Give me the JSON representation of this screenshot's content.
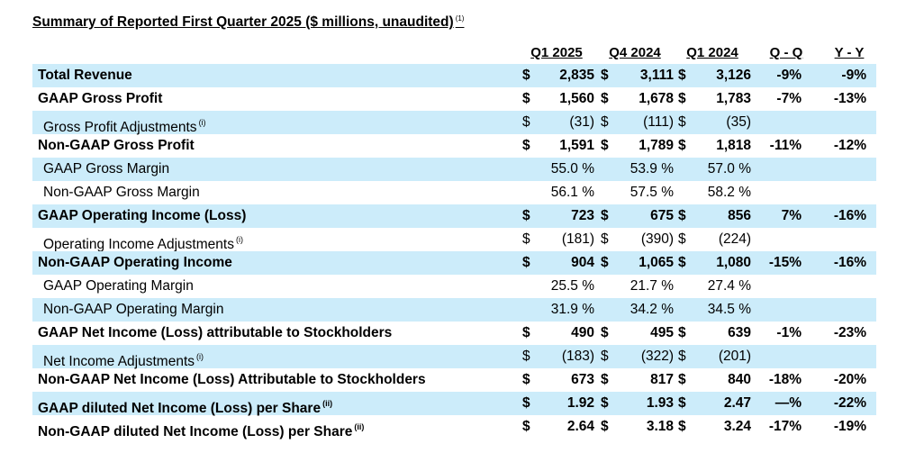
{
  "title": "Summary of Reported First Quarter 2025 ($ millions, unaudited)",
  "title_footnote": "(1)",
  "columns": [
    "Q1 2025",
    "Q4 2024",
    "Q1 2024",
    "Q - Q",
    "Y - Y"
  ],
  "rows": [
    {
      "label": "Total Revenue",
      "note": "",
      "bold": true,
      "shade": true,
      "indent": false,
      "c1": [
        "$",
        "2,835"
      ],
      "c2": [
        "$",
        "3,111"
      ],
      "c3": [
        "$",
        "3,126"
      ],
      "qq": "-9%",
      "yy": "-9%"
    },
    {
      "label": "GAAP Gross Profit",
      "note": "",
      "bold": true,
      "shade": false,
      "indent": false,
      "c1": [
        "$",
        "1,560"
      ],
      "c2": [
        "$",
        "1,678"
      ],
      "c3": [
        "$",
        "1,783"
      ],
      "qq": "-7%",
      "yy": "-13%"
    },
    {
      "label": "Gross Profit Adjustments",
      "note": "(i)",
      "bold": false,
      "shade": true,
      "indent": true,
      "c1": [
        "$",
        "(31)"
      ],
      "c2": [
        "$",
        "(111)"
      ],
      "c3": [
        "$",
        "(35)"
      ],
      "qq": "",
      "yy": ""
    },
    {
      "label": "Non-GAAP Gross Profit",
      "note": "",
      "bold": true,
      "shade": false,
      "indent": false,
      "c1": [
        "$",
        "1,591"
      ],
      "c2": [
        "$",
        "1,789"
      ],
      "c3": [
        "$",
        "1,818"
      ],
      "qq": "-11%",
      "yy": "-12%"
    },
    {
      "label": "GAAP Gross Margin",
      "note": "",
      "bold": false,
      "shade": true,
      "indent": true,
      "c1": [
        "",
        "55.0 %"
      ],
      "c2": [
        "",
        "53.9 %"
      ],
      "c3": [
        "",
        "57.0 %"
      ],
      "qq": "",
      "yy": ""
    },
    {
      "label": "Non-GAAP Gross Margin",
      "note": "",
      "bold": false,
      "shade": false,
      "indent": true,
      "c1": [
        "",
        "56.1 %"
      ],
      "c2": [
        "",
        "57.5 %"
      ],
      "c3": [
        "",
        "58.2 %"
      ],
      "qq": "",
      "yy": ""
    },
    {
      "label": "GAAP Operating Income  (Loss)",
      "note": "",
      "bold": true,
      "shade": true,
      "indent": false,
      "c1": [
        "$",
        "723"
      ],
      "c2": [
        "$",
        "675"
      ],
      "c3": [
        "$",
        "856"
      ],
      "qq": "7%",
      "yy": "-16%"
    },
    {
      "label": "Operating Income Adjustments",
      "note": "(i)",
      "bold": false,
      "shade": false,
      "indent": true,
      "c1": [
        "$",
        "(181)"
      ],
      "c2": [
        "$",
        "(390)"
      ],
      "c3": [
        "$",
        "(224)"
      ],
      "qq": "",
      "yy": ""
    },
    {
      "label": "Non-GAAP Operating Income",
      "note": "",
      "bold": true,
      "shade": true,
      "indent": false,
      "c1": [
        "$",
        "904"
      ],
      "c2": [
        "$",
        "1,065"
      ],
      "c3": [
        "$",
        "1,080"
      ],
      "qq": "-15%",
      "yy": "-16%"
    },
    {
      "label": "GAAP Operating Margin",
      "note": "",
      "bold": false,
      "shade": false,
      "indent": true,
      "c1": [
        "",
        "25.5 %"
      ],
      "c2": [
        "",
        "21.7 %"
      ],
      "c3": [
        "",
        "27.4 %"
      ],
      "qq": "",
      "yy": ""
    },
    {
      "label": "Non-GAAP Operating Margin",
      "note": "",
      "bold": false,
      "shade": true,
      "indent": true,
      "c1": [
        "",
        "31.9 %"
      ],
      "c2": [
        "",
        "34.2 %"
      ],
      "c3": [
        "",
        "34.5 %"
      ],
      "qq": "",
      "yy": ""
    },
    {
      "label": "GAAP Net Income (Loss) attributable to Stockholders",
      "note": "",
      "bold": true,
      "shade": false,
      "indent": false,
      "c1": [
        "$",
        "490"
      ],
      "c2": [
        "$",
        "495"
      ],
      "c3": [
        "$",
        "639"
      ],
      "qq": "-1%",
      "yy": "-23%"
    },
    {
      "label": "Net Income Adjustments",
      "note": "(i)",
      "bold": false,
      "shade": true,
      "indent": true,
      "c1": [
        "$",
        "(183)"
      ],
      "c2": [
        "$",
        "(322)"
      ],
      "c3": [
        "$",
        "(201)"
      ],
      "qq": "",
      "yy": ""
    },
    {
      "label": "Non-GAAP Net Income (Loss) Attributable to Stockholders",
      "note": "",
      "bold": true,
      "shade": false,
      "indent": false,
      "c1": [
        "$",
        "673"
      ],
      "c2": [
        "$",
        "817"
      ],
      "c3": [
        "$",
        "840"
      ],
      "qq": "-18%",
      "yy": "-20%"
    },
    {
      "label": "GAAP diluted Net Income (Loss) per Share",
      "note": "(ii)",
      "bold": true,
      "shade": true,
      "indent": false,
      "c1": [
        "$",
        "1.92"
      ],
      "c2": [
        "$",
        "1.93"
      ],
      "c3": [
        "$",
        "2.47"
      ],
      "qq": "—%",
      "yy": "-22%"
    },
    {
      "label": "Non-GAAP diluted Net Income (Loss) per Share",
      "note": "(ii)",
      "bold": true,
      "shade": false,
      "indent": false,
      "c1": [
        "$",
        "2.64"
      ],
      "c2": [
        "$",
        "3.18"
      ],
      "c3": [
        "$",
        "3.24"
      ],
      "qq": "-17%",
      "yy": "-19%"
    }
  ]
}
